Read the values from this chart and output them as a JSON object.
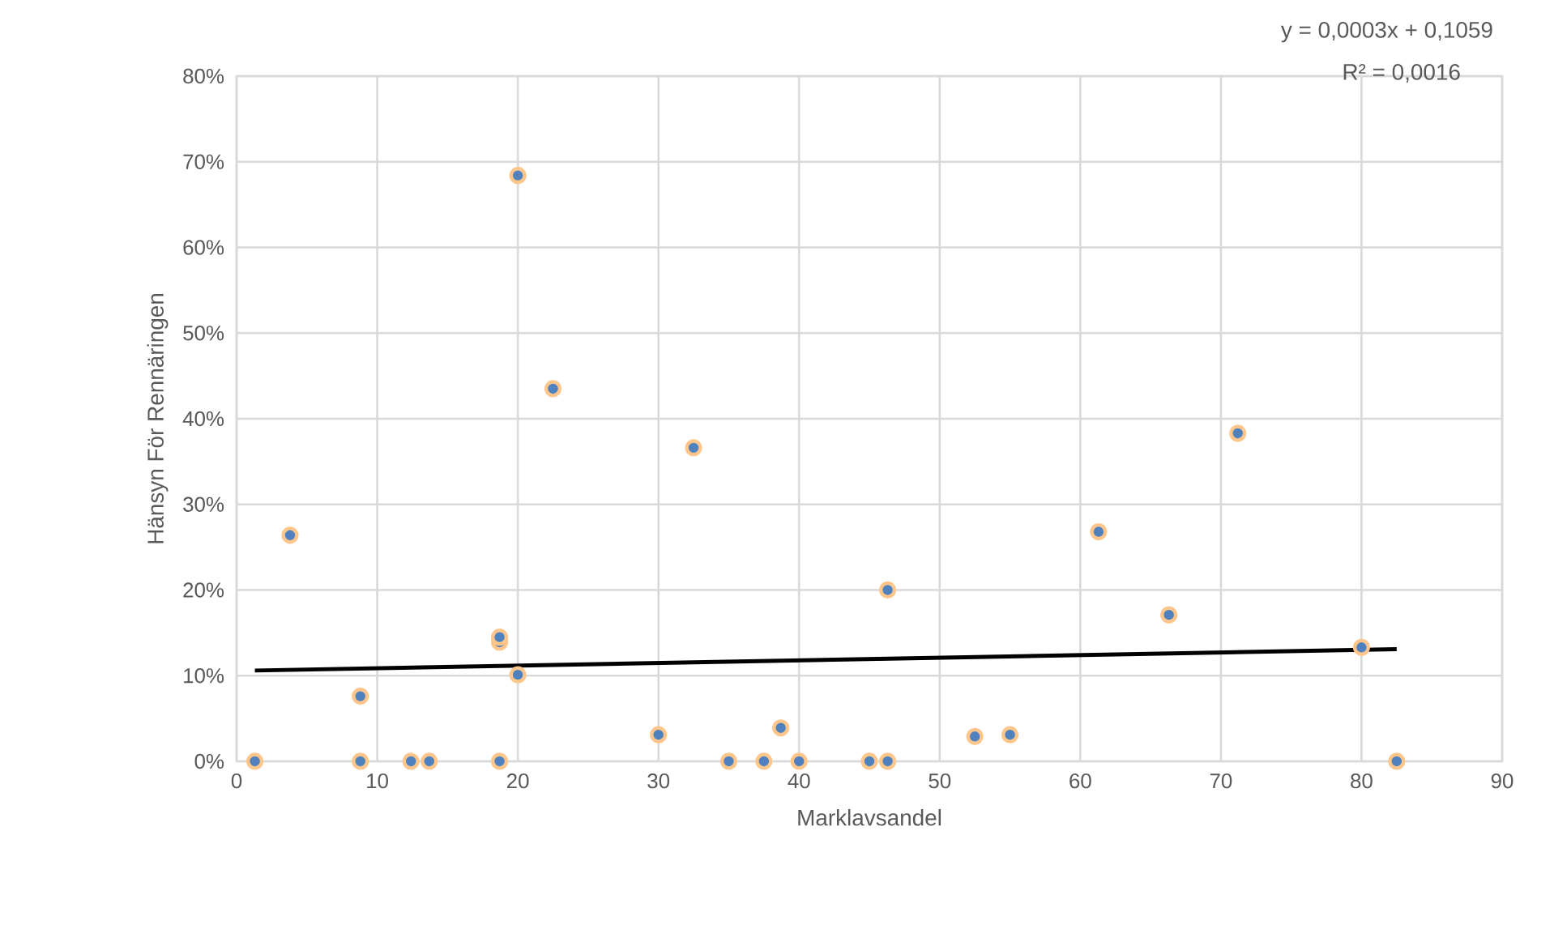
{
  "chart_data": {
    "type": "scatter",
    "xlabel": "Marklavsandel",
    "ylabel": "Hänsyn För Rennäringen",
    "xlim": [
      0,
      90
    ],
    "xticks": [
      0,
      10,
      20,
      30,
      40,
      50,
      60,
      70,
      80,
      90
    ],
    "ylim": [
      0,
      0.8
    ],
    "yticks": [
      {
        "value": 0,
        "label": "0%"
      },
      {
        "value": 0.1,
        "label": "10%"
      },
      {
        "value": 0.2,
        "label": "20%"
      },
      {
        "value": 0.3,
        "label": "30%"
      },
      {
        "value": 0.4,
        "label": "40%"
      },
      {
        "value": 0.5,
        "label": "50%"
      },
      {
        "value": 0.6,
        "label": "60%"
      },
      {
        "value": 0.7,
        "label": "70%"
      },
      {
        "value": 0.8,
        "label": "80%"
      }
    ],
    "grid": true,
    "marker": "circle",
    "annotations": [
      "y = 0,0003x + 0,1059",
      "R² = 0,0016"
    ],
    "series": [
      {
        "color": "#4e81bd",
        "x": [
          1.3,
          3.8,
          8.8,
          8.8,
          12.4,
          13.7,
          18.7,
          18.7,
          18.7,
          20.0,
          20.0,
          22.5,
          30.0,
          32.5,
          35.0,
          37.5,
          38.7,
          40.0,
          45.0,
          46.3,
          46.3,
          52.5,
          55.0,
          61.3,
          66.3,
          71.2,
          80.0,
          82.5
        ],
        "values": [
          0,
          0.264,
          0.076,
          0,
          0,
          0,
          0,
          0.139,
          0.145,
          0.684,
          0.101,
          0.435,
          0.031,
          0.366,
          0,
          0,
          0.039,
          0,
          0,
          0,
          0.2,
          0.029,
          0.031,
          0.268,
          0.171,
          0.383,
          0.133,
          0
        ]
      },
      {
        "type": "line",
        "color": "#000000",
        "line_style": "solid",
        "marker": "none",
        "x": [
          1.3,
          82.5
        ],
        "values": [
          0.106,
          0.131
        ]
      }
    ]
  }
}
